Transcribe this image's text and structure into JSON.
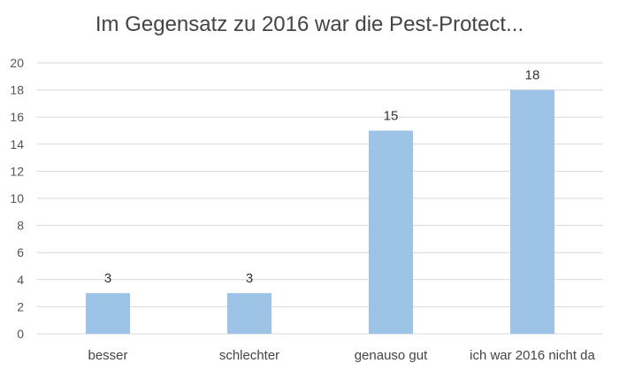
{
  "chart_data": {
    "type": "bar",
    "title": "Im Gegensatz zu 2016 war die Pest-Protect...",
    "categories": [
      "besser",
      "schlechter",
      "genauso gut",
      "ich war 2016 nicht da"
    ],
    "values": [
      3,
      3,
      15,
      18
    ],
    "data_labels": [
      "3",
      "3",
      "15",
      "18"
    ],
    "ylim": [
      0,
      20
    ],
    "yticks": [
      "0",
      "2",
      "4",
      "6",
      "8",
      "10",
      "12",
      "14",
      "16",
      "18",
      "20"
    ],
    "xlabel": "",
    "ylabel": "",
    "grid": true,
    "legend": "none",
    "bar_color": "#9DC3E6",
    "grid_color": "#D9D9D9"
  }
}
